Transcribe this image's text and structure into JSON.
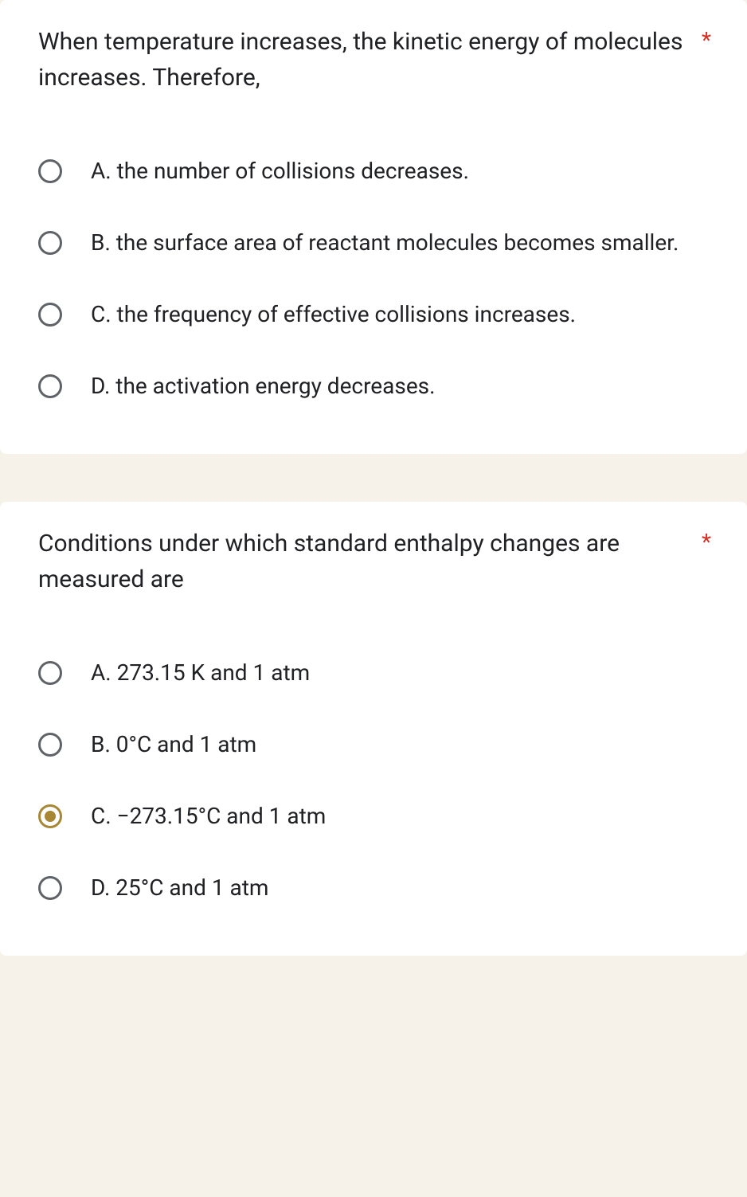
{
  "questions": [
    {
      "prompt": "When temperature increases, the kinetic energy of molecules increases. Therefore,",
      "required": true,
      "options": [
        {
          "label": "A. the number of collisions decreases.",
          "selected": false
        },
        {
          "label": "B. the surface area of reactant molecules becomes smaller.",
          "selected": false
        },
        {
          "label": "C. the frequency of effective collisions increases.",
          "selected": false
        },
        {
          "label": "D. the activation energy decreases.",
          "selected": false
        }
      ]
    },
    {
      "prompt": "Conditions under which standard enthalpy changes are measured are",
      "required": true,
      "options": [
        {
          "label": "A.   273.15 K and 1 atm",
          "selected": false
        },
        {
          "label": "B.   0°C and 1 atm",
          "selected": false
        },
        {
          "label": "C.   −273.15°C and 1 atm",
          "selected": true
        },
        {
          "label": "D.  25°C and 1 atm",
          "selected": false
        }
      ]
    }
  ],
  "required_marker": "*",
  "colors": {
    "background": "#f7f2e9",
    "card_background": "#ffffff",
    "text": "#202124",
    "radio_border": "#5f6368",
    "radio_selected": "#a88734",
    "required": "#d93025"
  }
}
